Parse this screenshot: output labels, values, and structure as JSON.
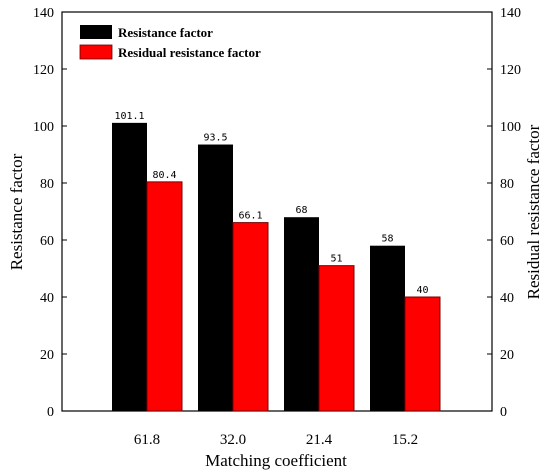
{
  "chart_data": {
    "type": "bar",
    "categories": [
      "61.8",
      "32.0",
      "21.4",
      "15.2"
    ],
    "series": [
      {
        "name": "Resistance factor",
        "values": [
          101.1,
          93.5,
          68,
          58
        ],
        "labels": [
          "101.1",
          "93.5",
          "68",
          "58"
        ],
        "color": "#000000"
      },
      {
        "name": "Residual resistance factor",
        "values": [
          80.4,
          66.1,
          51,
          40
        ],
        "labels": [
          "80.4",
          "66.1",
          "51",
          "40"
        ],
        "color": "#ff0000"
      }
    ],
    "xlabel": "Matching coefficient",
    "ylabel": "Resistance factor",
    "y2label": "Residual resistance factor",
    "ylim": [
      0,
      140
    ],
    "y2lim": [
      0,
      140
    ],
    "yticks": [
      0,
      20,
      40,
      60,
      80,
      100,
      120,
      140
    ],
    "legend_position": "top-left",
    "grid": false
  }
}
